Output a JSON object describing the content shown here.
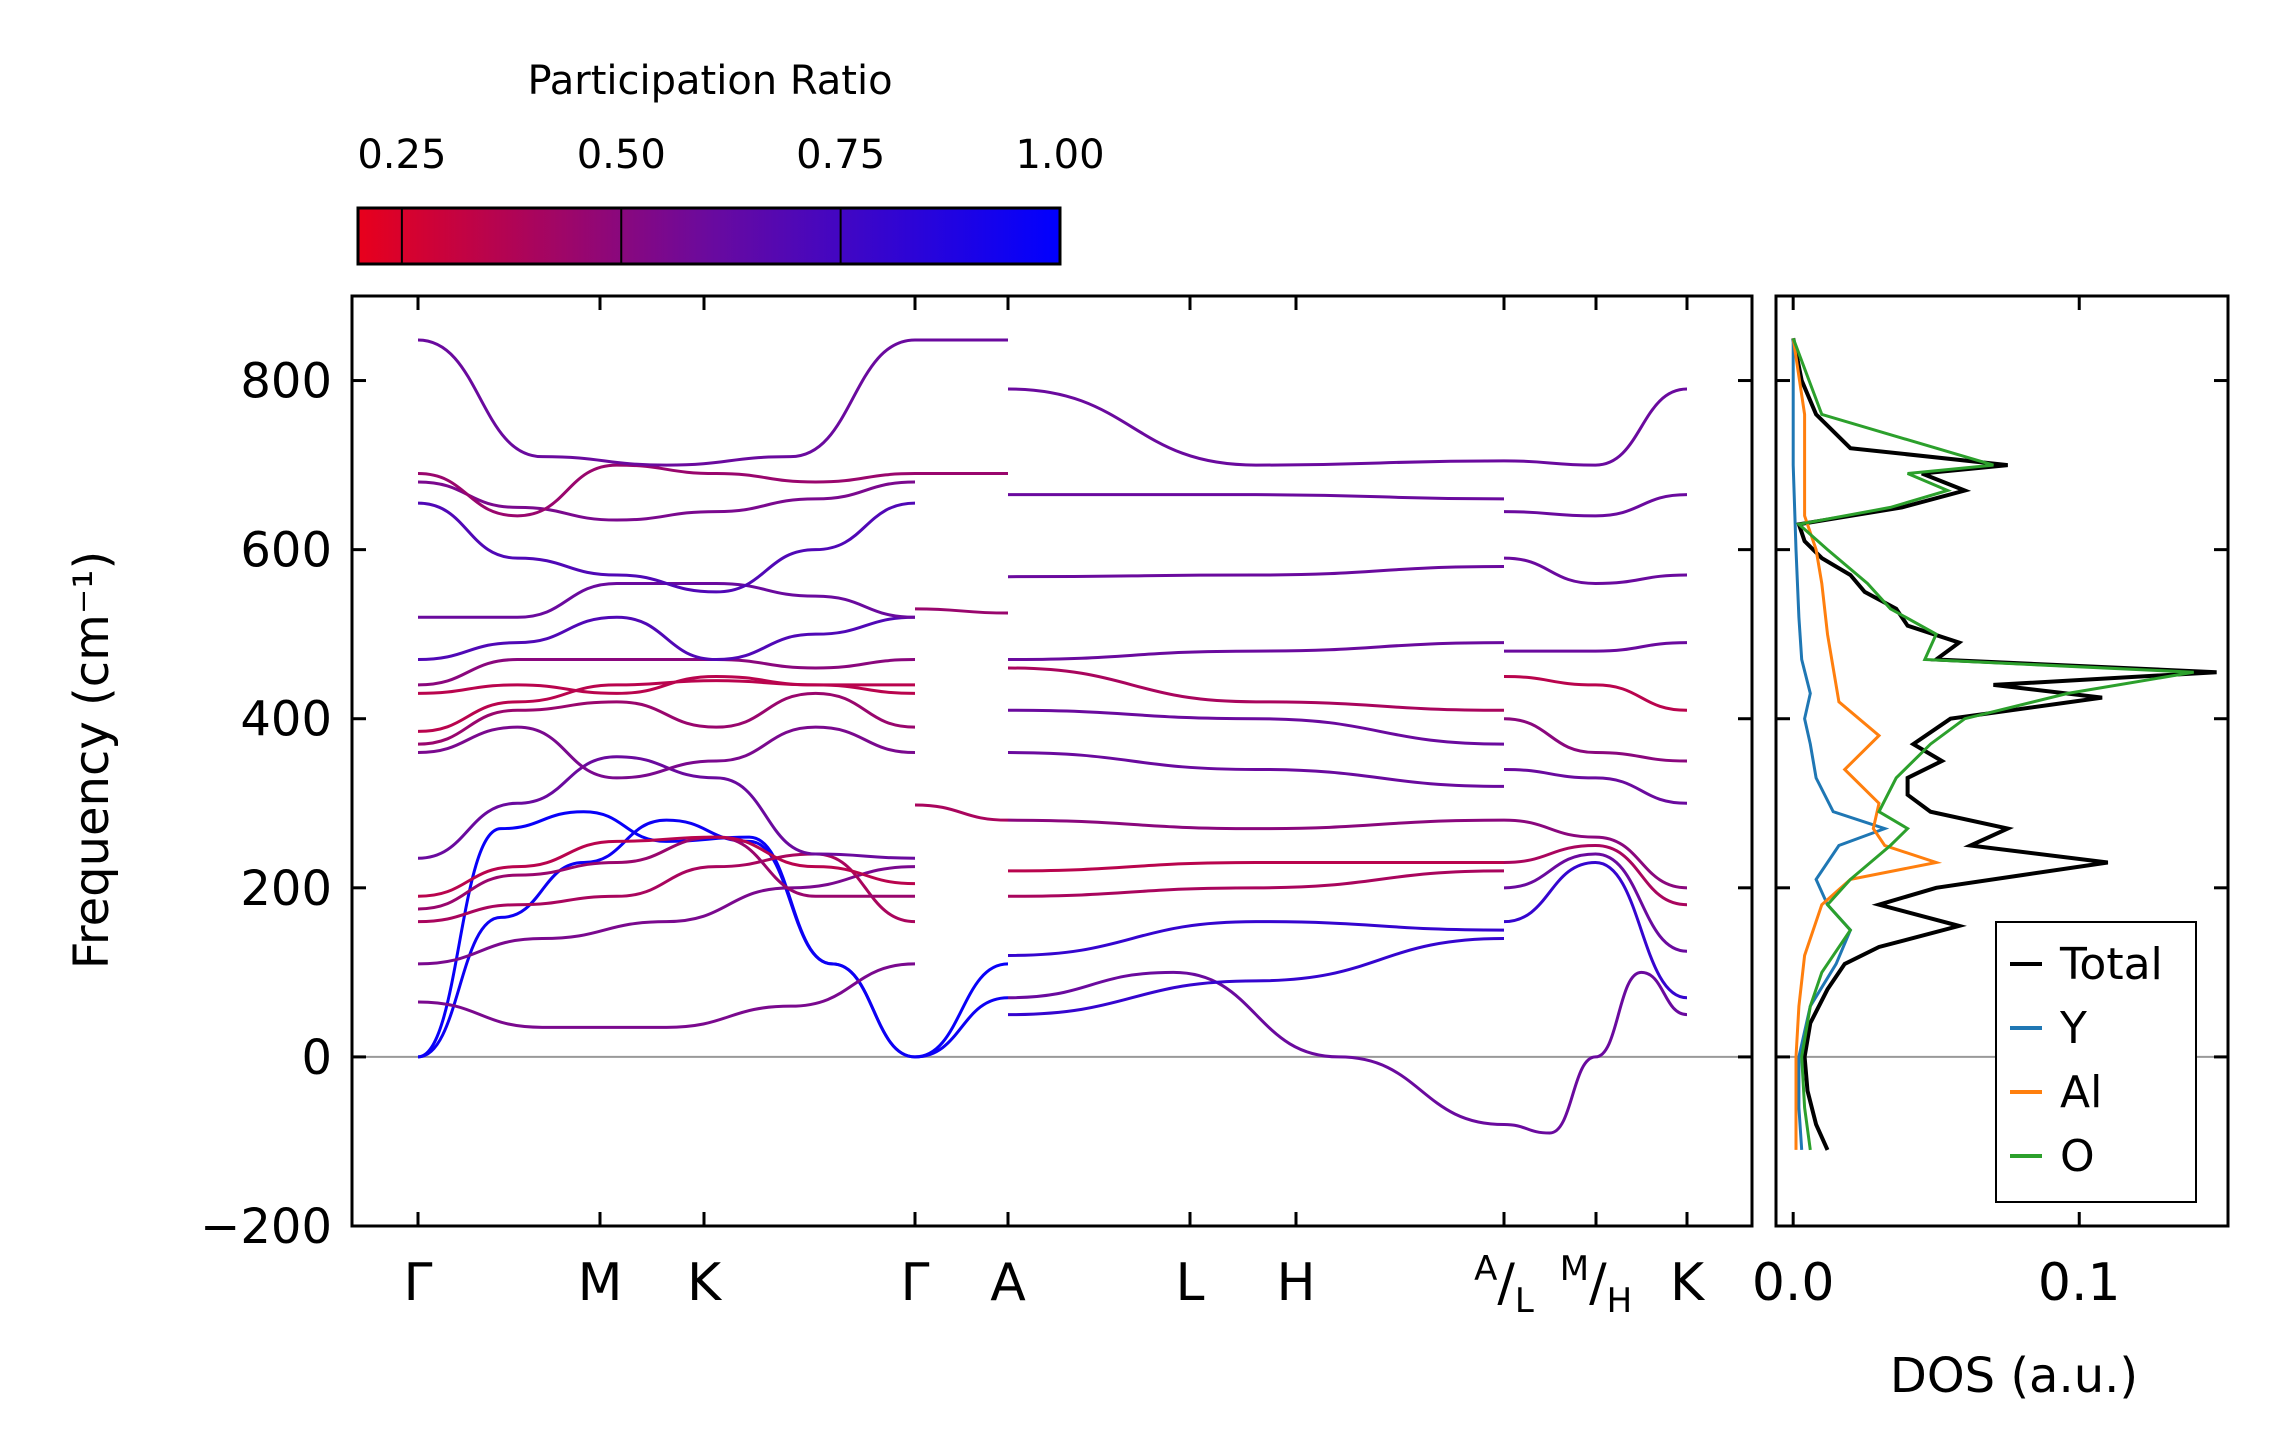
{
  "chart_data": [
    {
      "type": "line",
      "title": "",
      "xlabel": "",
      "ylabel": "Frequency (cm⁻¹)",
      "ylim": [
        -200,
        900
      ],
      "yticks": [
        -200,
        0,
        200,
        400,
        600,
        800
      ],
      "ytick_labels": [
        "−200",
        "0",
        "200",
        "400",
        "600",
        "800"
      ],
      "xlim": [
        0,
        14.64
      ],
      "high_symmetry_points": [
        {
          "label": "Γ",
          "x": 0
        },
        {
          "label": "M",
          "x": 2.9
        },
        {
          "label": "K",
          "x": 4.55
        },
        {
          "label": "Γ",
          "x": 7.85
        },
        {
          "label": "A",
          "x": 9.3
        },
        {
          "label": "L",
          "x": 12.2
        },
        {
          "label": "H",
          "x": 13.85
        },
        {
          "label": "A/L",
          "x": 17.15
        },
        {
          "label": "M/H",
          "x": 18.6
        },
        {
          "label": "K",
          "x": 20.05
        }
      ],
      "x_tick_labels": [
        "Γ",
        "M",
        "K",
        "Γ",
        "A",
        "L",
        "H",
        "A",
        "L",
        "M",
        "H",
        "K"
      ],
      "zero_line": 0,
      "colorbar": {
        "label": "Participation Ratio",
        "range": [
          0.2,
          1.0
        ],
        "ticks": [
          0.25,
          0.5,
          0.75,
          1.0
        ],
        "tick_labels": [
          "0.25",
          "0.50",
          "0.75",
          "1.00"
        ],
        "color_low": "#e8001c",
        "color_mid": "#6a0a9e",
        "color_high": "#0000ff"
      },
      "segments": [
        {
          "x": [
            0,
            7.85
          ],
          "bands": [
            {
              "y": [
                0,
                270,
                290,
                255,
                260,
                110,
                0
              ],
              "pr": 0.97
            },
            {
              "y": [
                0,
                165,
                230,
                280,
                255,
                110,
                0
              ],
              "pr": 0.95
            },
            {
              "y": [
                65,
                35,
                35,
                60,
                110
              ],
              "pr": 0.55
            },
            {
              "y": [
                110,
                140,
                160,
                200,
                225
              ],
              "pr": 0.55
            },
            {
              "y": [
                160,
                180,
                190,
                225,
                240,
                160
              ],
              "pr": 0.4
            },
            {
              "y": [
                175,
                215,
                230,
                260,
                190,
                190
              ],
              "pr": 0.45
            },
            {
              "y": [
                190,
                225,
                255,
                260,
                225,
                205
              ],
              "pr": 0.35
            },
            {
              "y": [
                235,
                300,
                355,
                330,
                240,
                235
              ],
              "pr": 0.6
            },
            {
              "y": [
                360,
                390,
                330,
                350,
                390,
                360
              ],
              "pr": 0.55
            },
            {
              "y": [
                370,
                410,
                420,
                390,
                430,
                390
              ],
              "pr": 0.45
            },
            {
              "y": [
                385,
                420,
                440,
                445,
                440,
                430
              ],
              "pr": 0.35
            },
            {
              "y": [
                430,
                440,
                430,
                450,
                440,
                440
              ],
              "pr": 0.35
            },
            {
              "y": [
                440,
                470,
                470,
                470,
                460,
                470
              ],
              "pr": 0.5
            },
            {
              "y": [
                470,
                490,
                520,
                470,
                500,
                520
              ],
              "pr": 0.7
            },
            {
              "y": [
                520,
                520,
                560,
                560,
                545,
                520
              ],
              "pr": 0.6
            },
            {
              "y": [
                655,
                590,
                570,
                550,
                600,
                655
              ],
              "pr": 0.7
            },
            {
              "y": [
                680,
                650,
                635,
                645,
                660,
                680
              ],
              "pr": 0.55
            },
            {
              "y": [
                690,
                640,
                700,
                690,
                680,
                690
              ],
              "pr": 0.45
            },
            {
              "y": [
                848,
                710,
                700,
                710,
                848
              ],
              "pr": 0.6
            }
          ]
        },
        {
          "x": [
            7.85,
            9.3
          ],
          "bands": [
            {
              "y": [
                0,
                110
              ],
              "pr": 0.97
            },
            {
              "y": [
                0,
                70
              ],
              "pr": 0.95
            },
            {
              "y": [
                298,
                280
              ],
              "pr": 0.4
            },
            {
              "y": [
                530,
                525
              ],
              "pr": 0.45
            },
            {
              "y": [
                848,
                848
              ],
              "pr": 0.6
            },
            {
              "y": [
                690,
                690
              ],
              "pr": 0.45
            }
          ]
        },
        {
          "x": [
            9.3,
            12.2
          ],
          "bands": [
            {
              "y": [
                790,
                700,
                705
              ],
              "pr": 0.6
            },
            {
              "y": [
                665,
                665,
                660
              ],
              "pr": 0.6
            },
            {
              "y": [
                568,
                570,
                580
              ],
              "pr": 0.6
            },
            {
              "y": [
                470,
                480,
                490
              ],
              "pr": 0.6
            },
            {
              "y": [
                460,
                420,
                410
              ],
              "pr": 0.4
            },
            {
              "y": [
                410,
                400,
                370
              ],
              "pr": 0.6
            },
            {
              "y": [
                360,
                340,
                320
              ],
              "pr": 0.6
            },
            {
              "y": [
                280,
                270,
                280
              ],
              "pr": 0.5
            },
            {
              "y": [
                220,
                230,
                230
              ],
              "pr": 0.35
            },
            {
              "y": [
                190,
                200,
                220
              ],
              "pr": 0.4
            },
            {
              "y": [
                120,
                160,
                150
              ],
              "pr": 0.8
            },
            {
              "y": [
                70,
                100,
                0,
                -80
              ],
              "pr": 0.6
            },
            {
              "y": [
                50,
                90,
                140
              ],
              "pr": 0.8
            }
          ]
        },
        {
          "x": [
            12.2,
            15.5
          ],
          "bands": [
            {
              "y": [
                705,
                700,
                790
              ],
              "pr": 0.6
            },
            {
              "y": [
                645,
                640,
                665
              ],
              "pr": 0.6
            },
            {
              "y": [
                590,
                560,
                570
              ],
              "pr": 0.6
            },
            {
              "y": [
                480,
                480,
                490
              ],
              "pr": 0.6
            },
            {
              "y": [
                450,
                440,
                410
              ],
              "pr": 0.35
            },
            {
              "y": [
                400,
                360,
                350
              ],
              "pr": 0.5
            },
            {
              "y": [
                340,
                330,
                300
              ],
              "pr": 0.6
            },
            {
              "y": [
                280,
                260,
                200
              ],
              "pr": 0.5
            },
            {
              "y": [
                230,
                250,
                180
              ],
              "pr": 0.4
            },
            {
              "y": [
                200,
                240,
                125
              ],
              "pr": 0.6
            },
            {
              "y": [
                160,
                230,
                70
              ],
              "pr": 0.8
            },
            {
              "y": [
                -80,
                -90,
                0,
                100,
                50
              ],
              "pr": 0.6
            }
          ]
        }
      ]
    },
    {
      "type": "line",
      "title": "",
      "xlabel": "DOS (a.u.)",
      "ylabel": "",
      "xlim": [
        -0.006,
        0.152
      ],
      "ylim": [
        -200,
        900
      ],
      "xticks": [
        0.0,
        0.1
      ],
      "xtick_labels": [
        "0.0",
        "0.1"
      ],
      "legend_position": "bottom-right",
      "series": [
        {
          "name": "Total",
          "color": "#000000",
          "y": [
            -110,
            -80,
            -40,
            0,
            40,
            80,
            110,
            130,
            155,
            180,
            200,
            215,
            230,
            250,
            270,
            290,
            310,
            330,
            350,
            370,
            400,
            425,
            440,
            455,
            470,
            490,
            510,
            530,
            550,
            570,
            590,
            610,
            630,
            650,
            670,
            690,
            700,
            720,
            760,
            800,
            850
          ],
          "values": [
            0.012,
            0.008,
            0.005,
            0.004,
            0.006,
            0.012,
            0.018,
            0.03,
            0.058,
            0.03,
            0.05,
            0.08,
            0.11,
            0.062,
            0.075,
            0.048,
            0.04,
            0.04,
            0.052,
            0.042,
            0.055,
            0.108,
            0.07,
            0.148,
            0.05,
            0.058,
            0.04,
            0.036,
            0.025,
            0.02,
            0.01,
            0.004,
            0.002,
            0.038,
            0.06,
            0.045,
            0.075,
            0.02,
            0.008,
            0.003,
            0.0
          ]
        },
        {
          "name": "Y",
          "color": "#1f77b4",
          "y": [
            -110,
            -60,
            0,
            60,
            110,
            150,
            180,
            210,
            250,
            270,
            290,
            330,
            370,
            400,
            430,
            470,
            520,
            600,
            700,
            850
          ],
          "values": [
            0.003,
            0.002,
            0.002,
            0.006,
            0.015,
            0.02,
            0.012,
            0.008,
            0.016,
            0.032,
            0.014,
            0.008,
            0.006,
            0.004,
            0.006,
            0.003,
            0.002,
            0.001,
            0.0,
            0.0
          ]
        },
        {
          "name": "Al",
          "color": "#ff7f0e",
          "y": [
            -110,
            -60,
            0,
            60,
            120,
            180,
            210,
            230,
            250,
            270,
            300,
            340,
            380,
            420,
            460,
            500,
            560,
            600,
            640,
            700,
            760,
            850
          ],
          "values": [
            0.001,
            0.001,
            0.001,
            0.002,
            0.004,
            0.01,
            0.02,
            0.05,
            0.032,
            0.028,
            0.03,
            0.018,
            0.03,
            0.016,
            0.014,
            0.012,
            0.01,
            0.008,
            0.004,
            0.004,
            0.004,
            0.0
          ]
        },
        {
          "name": "O",
          "color": "#2ca02c",
          "y": [
            -110,
            -60,
            0,
            60,
            100,
            150,
            180,
            210,
            250,
            270,
            290,
            330,
            370,
            400,
            430,
            455,
            470,
            500,
            530,
            560,
            600,
            630,
            650,
            670,
            690,
            700,
            760,
            850
          ],
          "values": [
            0.006,
            0.004,
            0.003,
            0.006,
            0.01,
            0.02,
            0.012,
            0.02,
            0.034,
            0.04,
            0.03,
            0.036,
            0.048,
            0.06,
            0.096,
            0.14,
            0.046,
            0.05,
            0.034,
            0.026,
            0.012,
            0.002,
            0.034,
            0.054,
            0.04,
            0.07,
            0.01,
            0.0
          ]
        }
      ]
    }
  ]
}
